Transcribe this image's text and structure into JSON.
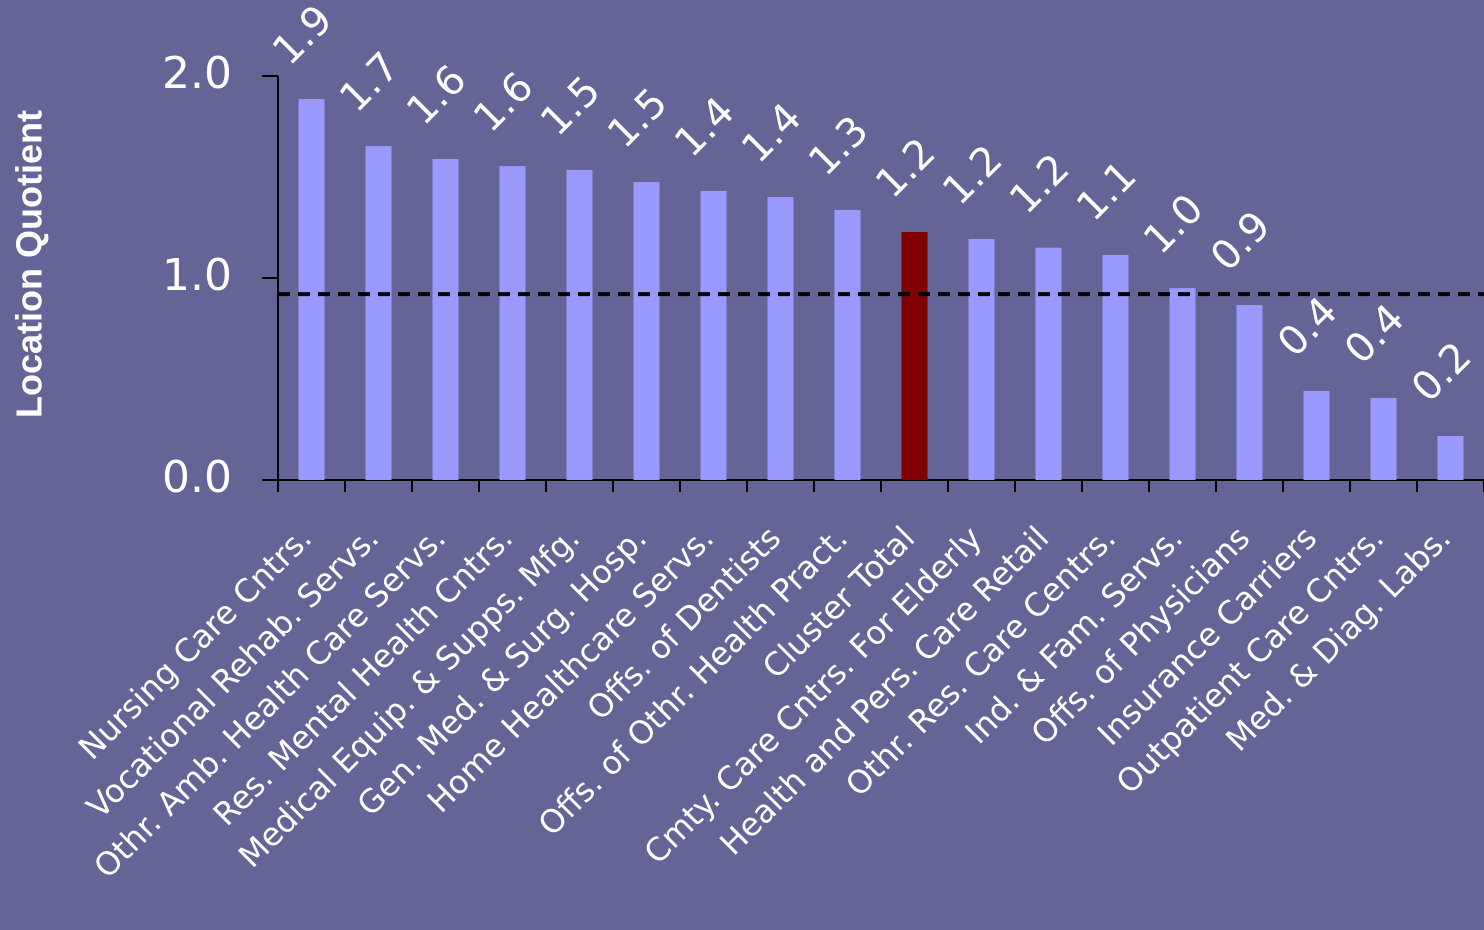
{
  "chart_data": {
    "type": "bar",
    "y_label": "Location Quotient",
    "categories": [
      "Nursing Care Cntrs.",
      "Vocational Rehab. Servs.",
      "Othr. Amb. Health Care Servs.",
      "Res. Mental Health Cntrs.",
      "Medical Equip. & Supps. Mfg.",
      "Gen. Med. & Surg. Hosp.",
      "Home Healthcare Servs.",
      "Offs. of Dentists",
      "Offs. of Othr. Health Pract.",
      "Cluster Total",
      "Cmty. Care Cntrs. For Elderly",
      "Health and Pers. Care Retail",
      "Othr. Res. Care Centrs.",
      "Ind. & Fam. Servs.",
      "Offs. of Physicians",
      "Insurance Carriers",
      "Outpatient Care Cntrs.",
      "Med. & Diag. Labs."
    ],
    "values": [
      1.886,
      1.653,
      1.589,
      1.554,
      1.535,
      1.475,
      1.431,
      1.401,
      1.337,
      1.228,
      1.193,
      1.15,
      1.114,
      0.95,
      0.866,
      0.441,
      0.406,
      0.218
    ],
    "value_labels": [
      "1.9",
      "1.7",
      "1.6",
      "1.6",
      "1.5",
      "1.5",
      "1.4",
      "1.4",
      "1.3",
      "1.2",
      "1.2",
      "1.2",
      "1.1",
      "1.0",
      "0.9",
      "0.4",
      "0.4",
      "0.2"
    ],
    "colors": [
      "#9999ff",
      "#9999ff",
      "#9999ff",
      "#9999ff",
      "#9999ff",
      "#9999ff",
      "#9999ff",
      "#9999ff",
      "#9999ff",
      "#800000",
      "#9999ff",
      "#9999ff",
      "#9999ff",
      "#9999ff",
      "#9999ff",
      "#9999ff",
      "#9999ff",
      "#9999ff"
    ],
    "reference_line": 0.92,
    "ylim": [
      0,
      2
    ],
    "yticks": [
      {
        "value": 0,
        "label": "0.0"
      },
      {
        "value": 1,
        "label": "1.0"
      },
      {
        "value": 2,
        "label": "2.0"
      }
    ]
  }
}
